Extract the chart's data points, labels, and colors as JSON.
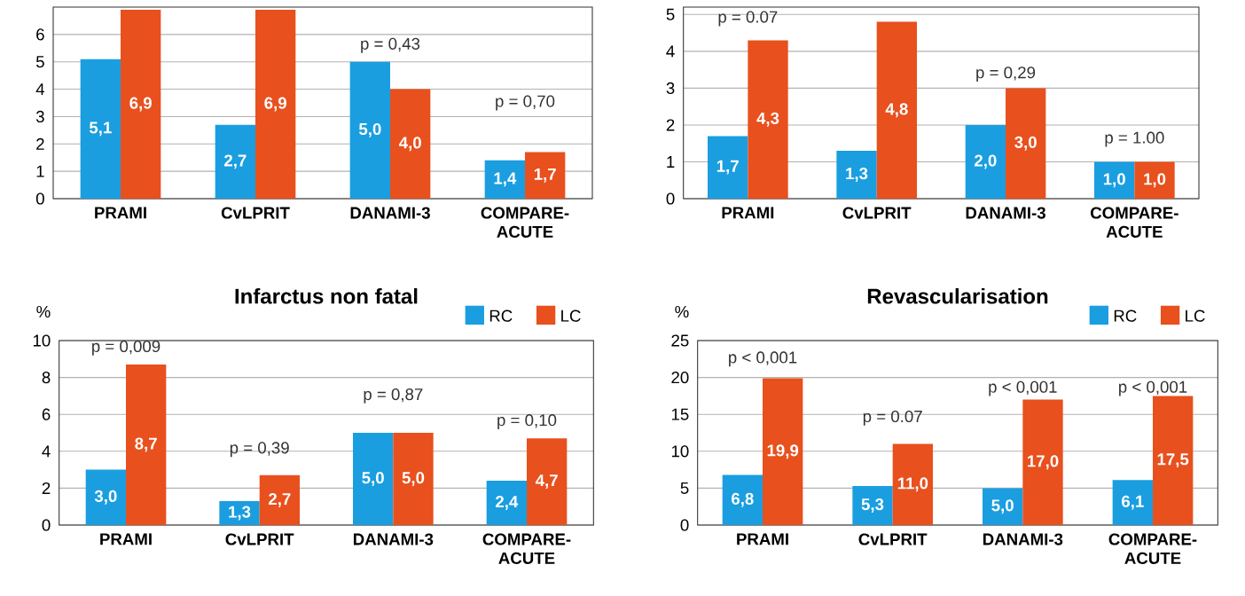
{
  "chart_data": [
    {
      "type": "bar",
      "categories": [
        "PRAMI",
        "CvLPRIT",
        "DANAMI-3",
        "COMPARE-ACUTE"
      ],
      "series": [
        {
          "color": "#1a9ee0",
          "values": [
            5.1,
            2.7,
            5.0,
            1.4
          ],
          "value_labels": [
            "5,1",
            "2,7",
            "5,0",
            "1,4"
          ]
        },
        {
          "color": "#e8501e",
          "values": [
            6.9,
            6.9,
            4.0,
            1.7
          ],
          "value_labels": [
            "6,9",
            "6,9",
            "4,0",
            "1,7"
          ]
        }
      ],
      "ylim": [
        0,
        7
      ],
      "yticks": [
        0,
        1,
        2,
        3,
        4,
        5,
        6
      ],
      "grid": "y",
      "annotations": [
        "p = 0,43",
        "p = 0,70"
      ]
    },
    {
      "type": "bar",
      "categories": [
        "PRAMI",
        "CvLPRIT",
        "DANAMI-3",
        "COMPARE-ACUTE"
      ],
      "series": [
        {
          "color": "#1a9ee0",
          "values": [
            1.7,
            1.3,
            2.0,
            1.0
          ],
          "value_labels": [
            "1,7",
            "1,3",
            "2,0",
            "1,0"
          ]
        },
        {
          "color": "#e8501e",
          "values": [
            4.3,
            4.8,
            3.0,
            1.0
          ],
          "value_labels": [
            "4,3",
            "4,8",
            "3,0",
            "1,0"
          ]
        }
      ],
      "ylim": [
        0,
        5.2
      ],
      "yticks": [
        0,
        1,
        2,
        3,
        4,
        5
      ],
      "grid": "y",
      "annotations": [
        "p = 0.07",
        "p = 0,29",
        "p = 1.00"
      ]
    },
    {
      "type": "bar",
      "title": "Infarctus non fatal",
      "ylabel": "%",
      "categories": [
        "PRAMI",
        "CvLPRIT",
        "DANAMI-3",
        "COMPARE-ACUTE"
      ],
      "series": [
        {
          "name": "RC",
          "color": "#1a9ee0",
          "values": [
            3.0,
            1.3,
            5.0,
            2.4
          ],
          "value_labels": [
            "3,0",
            "1,3",
            "5,0",
            "2,4"
          ]
        },
        {
          "name": "LC",
          "color": "#e8501e",
          "values": [
            8.7,
            2.7,
            5.0,
            4.7
          ],
          "value_labels": [
            "8,7",
            "2,7",
            "5,0",
            "4,7"
          ]
        }
      ],
      "ylim": [
        0,
        10
      ],
      "yticks": [
        0,
        2,
        4,
        6,
        8,
        10
      ],
      "grid": "y",
      "legend": "top right",
      "annotations": [
        "p = 0,009",
        "p = 0,39",
        "p = 0,87",
        "p = 0,10"
      ]
    },
    {
      "type": "bar",
      "title": "Revascularisation",
      "ylabel": "%",
      "categories": [
        "PRAMI",
        "CvLPRIT",
        "DANAMI-3",
        "COMPARE-ACUTE"
      ],
      "series": [
        {
          "name": "RC",
          "color": "#1a9ee0",
          "values": [
            6.8,
            5.3,
            5.0,
            6.1
          ],
          "value_labels": [
            "6,8",
            "5,3",
            "5,0",
            "6,1"
          ]
        },
        {
          "name": "LC",
          "color": "#e8501e",
          "values": [
            19.9,
            11.0,
            17.0,
            17.5
          ],
          "value_labels": [
            "19,9",
            "11,0",
            "17,0",
            "17,5"
          ]
        }
      ],
      "ylim": [
        0,
        25
      ],
      "yticks": [
        0,
        5,
        10,
        15,
        20,
        25
      ],
      "grid": "y",
      "legend": "top right",
      "annotations": [
        "p < 0,001",
        "p = 0.07",
        "p < 0,001",
        "p < 0,001"
      ]
    }
  ]
}
